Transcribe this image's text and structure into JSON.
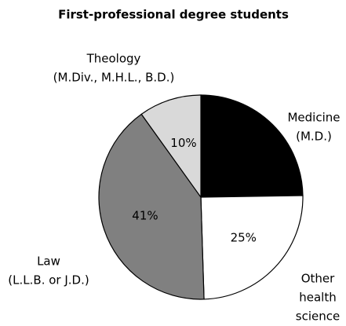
{
  "chart_data": {
    "type": "pie",
    "title": "First-professional degree students",
    "categories": [
      [
        "Medicine",
        "(M.D.)"
      ],
      [
        "Other",
        "health",
        "science"
      ],
      [
        "Law",
        "(L.L.B. or J.D.)"
      ],
      [
        "Theology",
        "(M.Div., M.H.L., B.D.)"
      ]
    ],
    "values": [
      25,
      25,
      41,
      10
    ],
    "value_labels": [
      "25%",
      "25%",
      "41%",
      "10%"
    ],
    "colors": [
      "#000000",
      "#ffffff",
      "#808080",
      "#d9d9d9"
    ]
  }
}
